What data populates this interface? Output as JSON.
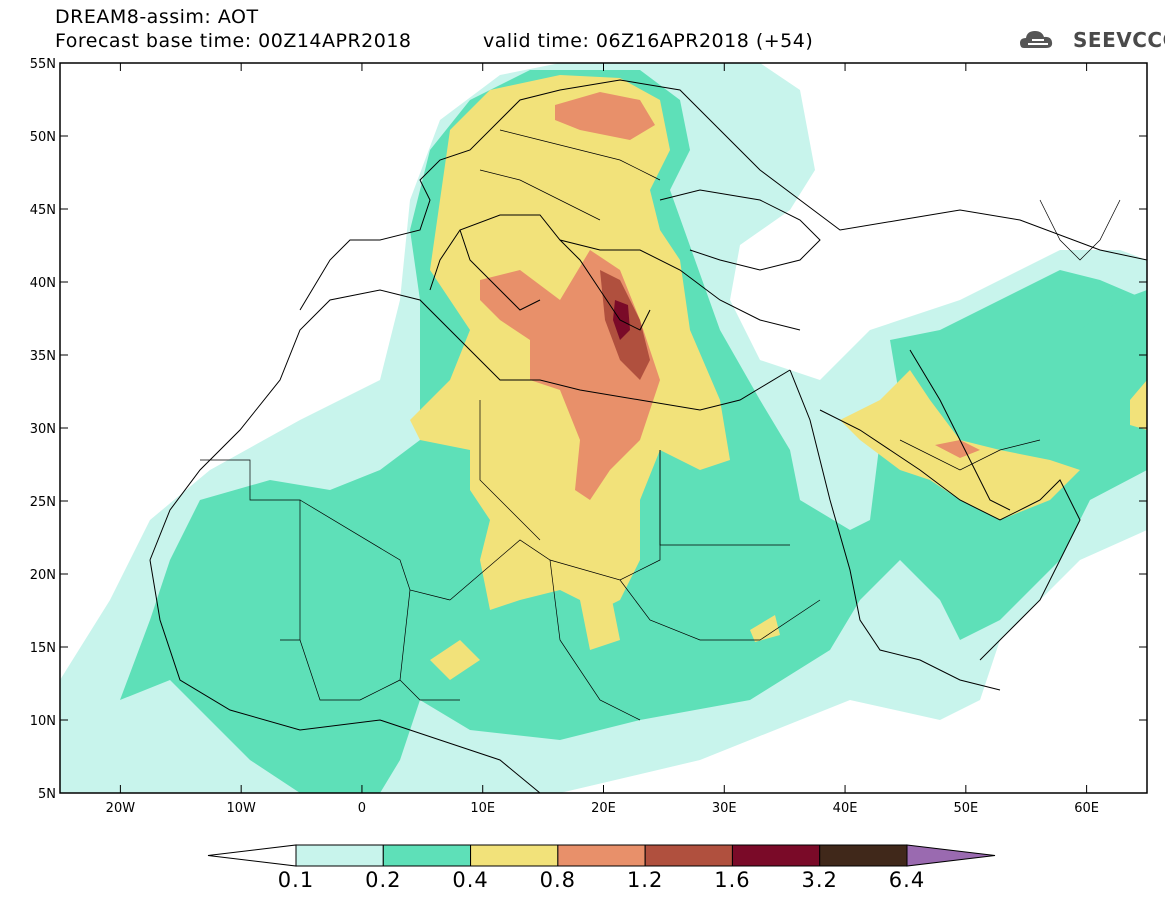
{
  "title": {
    "line1": "DREAM8-assim: AOT",
    "line2": "Forecast base time: 00Z14APR2018",
    "valid": "valid time: 06Z16APR2018 (+54)"
  },
  "logo": {
    "icon": "cloud-icon",
    "text": "SEEVCCC"
  },
  "map": {
    "extent": {
      "lon": [
        -25,
        65
      ],
      "lat": [
        5,
        55
      ]
    },
    "lat_labels": [
      "55N",
      "50N",
      "45N",
      "40N",
      "35N",
      "30N",
      "25N",
      "20N",
      "15N",
      "10N",
      "5N"
    ],
    "lon_labels": [
      "20W",
      "10W",
      "0",
      "10E",
      "20E",
      "30E",
      "40E",
      "50E",
      "60E"
    ]
  },
  "colorbar": {
    "levels": [
      "0.1",
      "0.2",
      "0.4",
      "0.8",
      "1.2",
      "1.6",
      "3.2",
      "6.4"
    ],
    "colors": [
      "#ffffff",
      "#c8f4ec",
      "#5ee0b8",
      "#f2e27a",
      "#e8906a",
      "#b0503e",
      "#7a0a28",
      "#40281a",
      "#9a6ab0"
    ]
  }
}
